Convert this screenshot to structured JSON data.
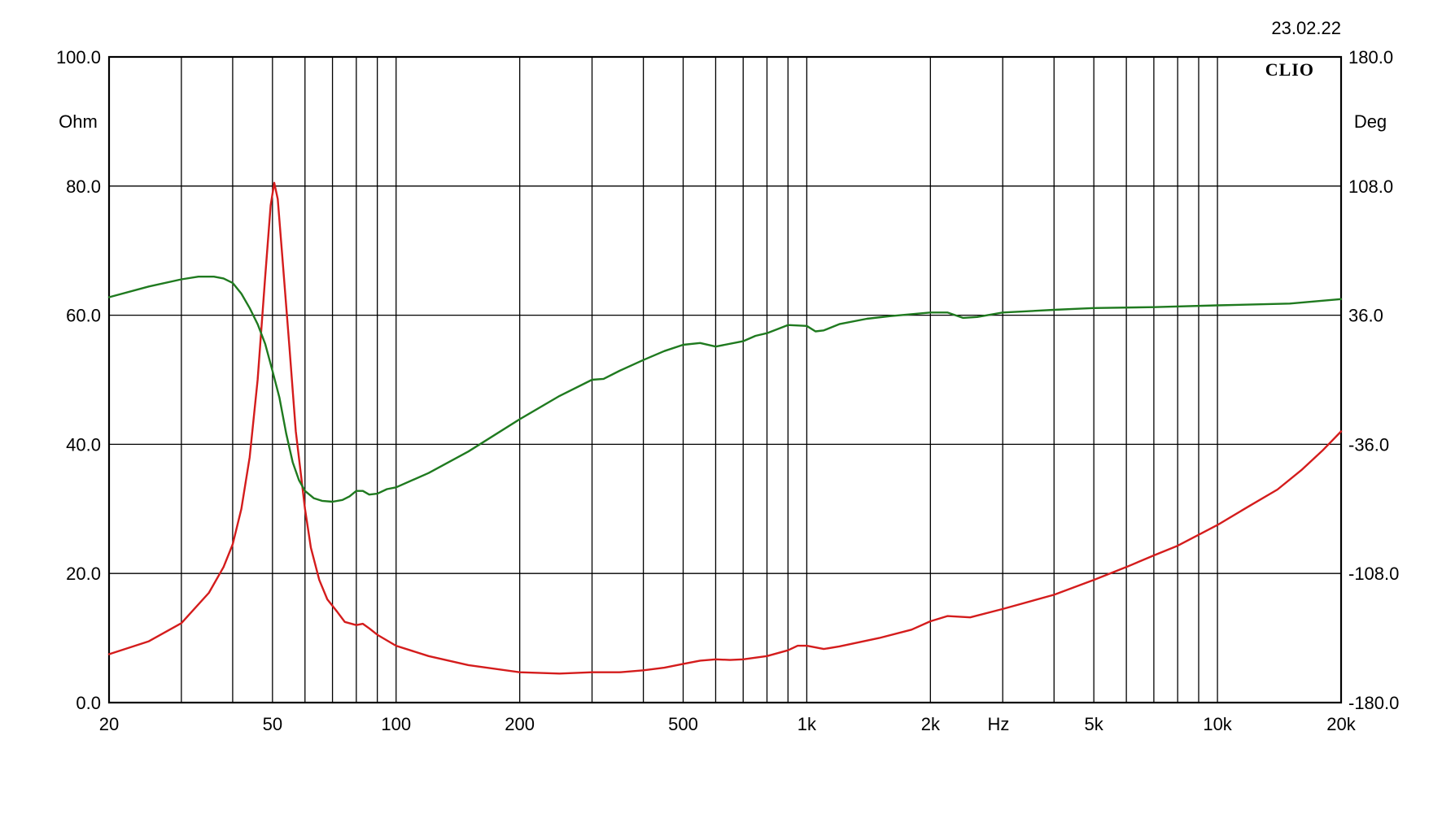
{
  "date": "23.02.22",
  "brand": "CLIO",
  "chart_data": {
    "type": "line",
    "xscale": "log",
    "xlim": [
      20,
      20000
    ],
    "ylim_left": [
      0,
      100
    ],
    "ylim_right": [
      -180,
      180
    ],
    "ylabel_left_unit": "Ohm",
    "ylabel_right_unit": "Deg",
    "xlabel_unit": "Hz",
    "grid": true,
    "x_ticks": [
      {
        "value": 20,
        "label": "20"
      },
      {
        "value": 50,
        "label": "50"
      },
      {
        "value": 100,
        "label": "100"
      },
      {
        "value": 200,
        "label": "200"
      },
      {
        "value": 500,
        "label": "500"
      },
      {
        "value": 1000,
        "label": "1k"
      },
      {
        "value": 2000,
        "label": "2k"
      },
      {
        "value": 5000,
        "label": "5k"
      },
      {
        "value": 10000,
        "label": "10k"
      },
      {
        "value": 20000,
        "label": "20k"
      }
    ],
    "x_grid": [
      20,
      30,
      40,
      50,
      60,
      70,
      80,
      90,
      100,
      200,
      300,
      400,
      500,
      600,
      700,
      800,
      900,
      1000,
      2000,
      3000,
      4000,
      5000,
      6000,
      7000,
      8000,
      9000,
      10000,
      20000
    ],
    "y_left_ticks": [
      {
        "value": 0,
        "label": "0.0"
      },
      {
        "value": 20,
        "label": "20.0"
      },
      {
        "value": 40,
        "label": "40.0"
      },
      {
        "value": 60,
        "label": "60.0"
      },
      {
        "value": 80,
        "label": "80.0"
      },
      {
        "value": 100,
        "label": "100.0"
      }
    ],
    "y_right_ticks": [
      {
        "value": -180,
        "label": "-180.0"
      },
      {
        "value": -108,
        "label": "-108.0"
      },
      {
        "value": -36,
        "label": "-36.0"
      },
      {
        "value": 36,
        "label": "36.0"
      },
      {
        "value": 108,
        "label": "108.0"
      },
      {
        "value": 180,
        "label": "180.0"
      }
    ],
    "series": [
      {
        "color": "#d41c1c",
        "axis": "left",
        "points": [
          [
            20,
            7.5
          ],
          [
            25,
            9.5
          ],
          [
            30,
            12.3
          ],
          [
            35,
            17
          ],
          [
            38,
            21
          ],
          [
            40,
            24.5
          ],
          [
            42,
            30
          ],
          [
            44,
            38
          ],
          [
            46,
            50
          ],
          [
            48,
            66
          ],
          [
            49.5,
            77
          ],
          [
            50.5,
            80.5
          ],
          [
            51.5,
            78
          ],
          [
            53,
            68
          ],
          [
            55,
            55
          ],
          [
            57,
            42
          ],
          [
            60,
            30
          ],
          [
            62,
            24
          ],
          [
            65,
            19
          ],
          [
            68,
            16
          ],
          [
            72,
            14
          ],
          [
            75,
            12.5
          ],
          [
            80,
            12
          ],
          [
            83,
            12.2
          ],
          [
            86,
            11.5
          ],
          [
            90,
            10.5
          ],
          [
            100,
            8.8
          ],
          [
            120,
            7.2
          ],
          [
            150,
            5.8
          ],
          [
            200,
            4.7
          ],
          [
            250,
            4.5
          ],
          [
            300,
            4.7
          ],
          [
            350,
            4.7
          ],
          [
            400,
            5
          ],
          [
            450,
            5.4
          ],
          [
            500,
            6
          ],
          [
            550,
            6.5
          ],
          [
            600,
            6.7
          ],
          [
            650,
            6.6
          ],
          [
            700,
            6.7
          ],
          [
            800,
            7.2
          ],
          [
            900,
            8.1
          ],
          [
            950,
            8.8
          ],
          [
            1000,
            8.8
          ],
          [
            1100,
            8.3
          ],
          [
            1200,
            8.7
          ],
          [
            1500,
            10
          ],
          [
            1800,
            11.3
          ],
          [
            2000,
            12.6
          ],
          [
            2200,
            13.4
          ],
          [
            2500,
            13.2
          ],
          [
            3000,
            14.5
          ],
          [
            4000,
            16.7
          ],
          [
            5000,
            19
          ],
          [
            6000,
            21
          ],
          [
            7000,
            22.8
          ],
          [
            8000,
            24.3
          ],
          [
            10000,
            27.5
          ],
          [
            12000,
            30.5
          ],
          [
            14000,
            33
          ],
          [
            16000,
            36
          ],
          [
            18000,
            39
          ],
          [
            20000,
            42
          ]
        ]
      },
      {
        "color": "#1f7a1f",
        "axis": "right",
        "points": [
          [
            20,
            46
          ],
          [
            25,
            52
          ],
          [
            30,
            56
          ],
          [
            33,
            57.5
          ],
          [
            36,
            57.5
          ],
          [
            38,
            56.5
          ],
          [
            40,
            54
          ],
          [
            42,
            48
          ],
          [
            44,
            40
          ],
          [
            46,
            31
          ],
          [
            48,
            20
          ],
          [
            50,
            5
          ],
          [
            52,
            -10
          ],
          [
            54,
            -30
          ],
          [
            56,
            -46
          ],
          [
            58,
            -56
          ],
          [
            60,
            -62
          ],
          [
            63,
            -66
          ],
          [
            66,
            -67.5
          ],
          [
            70,
            -68
          ],
          [
            74,
            -67
          ],
          [
            77,
            -65
          ],
          [
            80,
            -62
          ],
          [
            83,
            -62
          ],
          [
            86,
            -64
          ],
          [
            90,
            -63.5
          ],
          [
            95,
            -61
          ],
          [
            100,
            -60
          ],
          [
            120,
            -52
          ],
          [
            150,
            -40
          ],
          [
            200,
            -22
          ],
          [
            250,
            -9
          ],
          [
            300,
            0
          ],
          [
            320,
            0.5
          ],
          [
            350,
            5
          ],
          [
            400,
            11
          ],
          [
            450,
            16
          ],
          [
            500,
            19.5
          ],
          [
            550,
            20.5
          ],
          [
            600,
            18.5
          ],
          [
            700,
            21.5
          ],
          [
            750,
            24.5
          ],
          [
            800,
            26
          ],
          [
            900,
            30.5
          ],
          [
            1000,
            30
          ],
          [
            1050,
            27
          ],
          [
            1100,
            27.5
          ],
          [
            1200,
            31
          ],
          [
            1400,
            34
          ],
          [
            1600,
            35.5
          ],
          [
            2000,
            37.5
          ],
          [
            2200,
            37.5
          ],
          [
            2400,
            34.5
          ],
          [
            2600,
            35
          ],
          [
            3000,
            37.5
          ],
          [
            4000,
            39
          ],
          [
            5000,
            40
          ],
          [
            7000,
            40.5
          ],
          [
            10000,
            41.5
          ],
          [
            15000,
            42.5
          ],
          [
            20000,
            45
          ]
        ]
      }
    ]
  }
}
